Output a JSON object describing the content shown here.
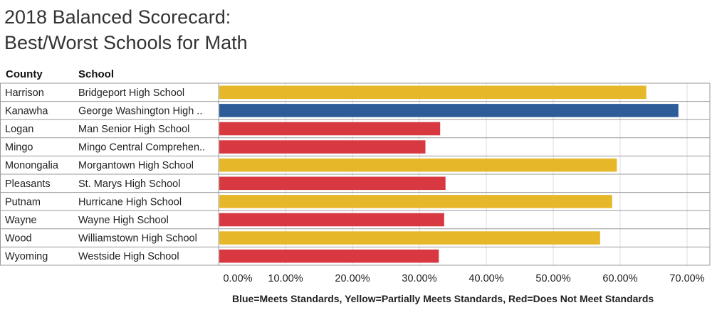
{
  "title_lines": [
    "2018 Balanced Scorecard:",
    "Best/Worst Schools for Math"
  ],
  "columns": {
    "county": "County",
    "school": "School"
  },
  "legend_text": "Blue=Meets Standards, Yellow=Partially Meets Standards, Red=Does Not Meet Standards",
  "colors": {
    "blue": "#2d5c98",
    "yellow": "#e6b829",
    "red": "#d83840",
    "grid": "#dddddd",
    "rowline": "#9a9a9a"
  },
  "chart_data": {
    "type": "bar",
    "orientation": "horizontal",
    "title": "2018 Balanced Scorecard: Best/Worst Schools for Math",
    "xlim": [
      0,
      70
    ],
    "xticks": [
      "0.00%",
      "10.00%",
      "20.00%",
      "30.00%",
      "40.00%",
      "50.00%",
      "60.00%",
      "70.00%"
    ],
    "grid": true,
    "legend": "bottom",
    "rows": [
      {
        "county": "Harrison",
        "school": "Bridgeport High School",
        "value": 63.8,
        "status": "yellow"
      },
      {
        "county": "Kanawha",
        "school": "George Washington High ..",
        "value": 68.6,
        "status": "blue"
      },
      {
        "county": "Logan",
        "school": "Man Senior High School",
        "value": 33.0,
        "status": "red"
      },
      {
        "county": "Mingo",
        "school": "Mingo Central Comprehen..",
        "value": 30.8,
        "status": "red"
      },
      {
        "county": "Monongalia",
        "school": "Morgantown High School",
        "value": 59.4,
        "status": "yellow"
      },
      {
        "county": "Pleasants",
        "school": "St. Marys High School",
        "value": 33.8,
        "status": "red"
      },
      {
        "county": "Putnam",
        "school": "Hurricane High School",
        "value": 58.7,
        "status": "yellow"
      },
      {
        "county": "Wayne",
        "school": "Wayne High School",
        "value": 33.6,
        "status": "red"
      },
      {
        "county": "Wood",
        "school": "Williamstown High School",
        "value": 56.9,
        "status": "yellow"
      },
      {
        "county": "Wyoming",
        "school": "Westside High School",
        "value": 32.8,
        "status": "red"
      }
    ]
  }
}
